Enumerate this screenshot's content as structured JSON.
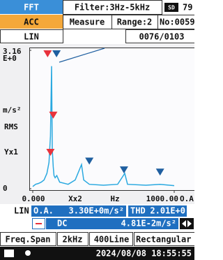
{
  "header": {
    "mode": "FFT",
    "filter": "Filter:3Hz-5kHz",
    "sd": "SD",
    "battery": "79",
    "sensor": "ACC",
    "measure": "Measure",
    "range": "Range:2",
    "number": "No:0059",
    "scale": "LIN",
    "record": "0076/0103"
  },
  "chart_data": {
    "type": "line",
    "color": "#2aa9e0",
    "x": [
      0,
      20,
      40,
      60,
      80,
      100,
      115,
      125,
      133,
      138,
      145,
      150,
      158,
      170,
      190,
      250,
      300,
      345,
      360,
      400,
      500,
      600,
      650,
      670,
      800,
      900,
      1000
    ],
    "values": [
      0.05,
      0.1,
      0.12,
      0.15,
      0.2,
      0.35,
      0.6,
      1.2,
      2.8,
      0.9,
      0.5,
      0.3,
      0.25,
      0.3,
      0.15,
      0.1,
      0.2,
      0.55,
      0.2,
      0.1,
      0.08,
      0.1,
      0.35,
      0.1,
      0.08,
      0.1,
      0.07
    ],
    "xlim": [
      0,
      1000
    ],
    "ylim": [
      0,
      3.16
    ],
    "xticks": [
      {
        "value": 0,
        "label": "0.000"
      },
      {
        "value": 1000,
        "label": "1000.00"
      }
    ],
    "yticks": [
      0,
      3.16
    ],
    "y_exponent": "E+0",
    "y_unit": "m/s²",
    "y_mode": "RMS",
    "y_zoom": "Yx1",
    "x_zoom": "Xx2",
    "x_unit": "Hz",
    "x_extra": "O.A",
    "markers": [
      {
        "x": 105,
        "value": 3.0,
        "color": "#e8323c"
      },
      {
        "x": 168,
        "value": 3.0,
        "color": "#1f5fa0"
      },
      {
        "x": 145,
        "value": 1.6,
        "color": "#e8323c"
      },
      {
        "x": 125,
        "value": 0.75,
        "color": "#e8323c"
      },
      {
        "x": 400,
        "value": 0.55,
        "color": "#1f5fa0"
      },
      {
        "x": 645,
        "value": 0.35,
        "color": "#1f5fa0"
      },
      {
        "x": 900,
        "value": 0.3,
        "color": "#1f5fa0"
      }
    ]
  },
  "readout": {
    "scale": "LIN",
    "oa_label": "O.A.",
    "oa_value": "3.30E+0m/s²",
    "thd_label": "THD",
    "thd_value": "2.01E+0",
    "dc_label": "DC",
    "dc_value": "4.81E-2m/s²"
  },
  "footer": {
    "span_label": "Freq.Span",
    "span": "2kHz",
    "lines": "400Line",
    "window": "Rectangular",
    "datetime": "2024/08/08 18:55:55"
  }
}
